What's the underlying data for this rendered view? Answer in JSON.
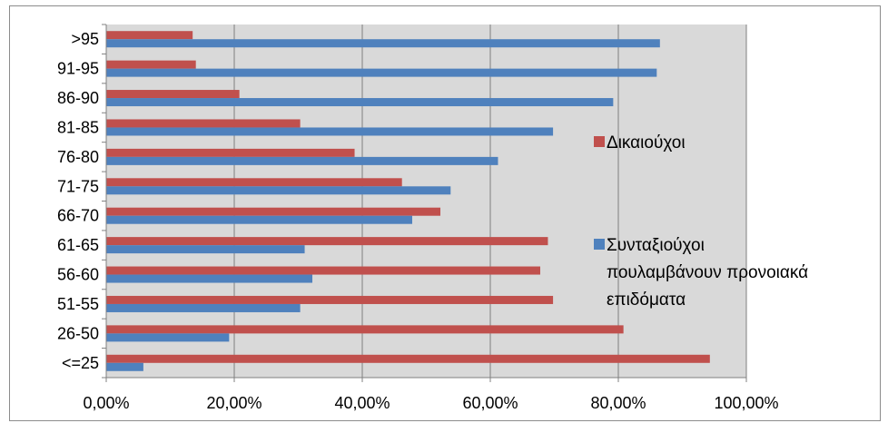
{
  "chart_data": {
    "type": "bar",
    "orientation": "horizontal",
    "categories": [
      ">95",
      "91-95",
      "86-90",
      "81-85",
      "76-80",
      "71-75",
      "66-70",
      "61-65",
      "56-60",
      "51-55",
      "26-50",
      "<=25"
    ],
    "series": [
      {
        "name": "Δικαιούχοι",
        "color": "#c0504d",
        "values": [
          13.5,
          14.0,
          20.8,
          30.3,
          38.8,
          46.2,
          52.2,
          69.0,
          67.8,
          69.8,
          80.8,
          94.3
        ]
      },
      {
        "name": "Συνταξιούχοι πουλαμβάνουν προνοιακά επιδόματα",
        "color": "#4f81bd",
        "values": [
          86.5,
          86.0,
          79.2,
          69.8,
          61.2,
          53.8,
          47.8,
          31.0,
          32.2,
          30.3,
          19.2,
          5.8
        ]
      }
    ],
    "xlim": [
      0,
      100
    ],
    "x_ticks": [
      "0,00%",
      "20,00%",
      "40,00%",
      "60,00%",
      "80,00%",
      "100,00%"
    ],
    "x_tick_values": [
      0,
      20,
      40,
      60,
      80,
      100
    ],
    "grid": "vertical",
    "plot_background": "#d9d9d9",
    "legend_position": "right",
    "legend_lines": {
      "series1": [
        "Δικαιούχοι"
      ],
      "series2": [
        "Συνταξιούχοι",
        "πουλαμβάνουν προνοιακά",
        "επιδόματα"
      ]
    }
  }
}
